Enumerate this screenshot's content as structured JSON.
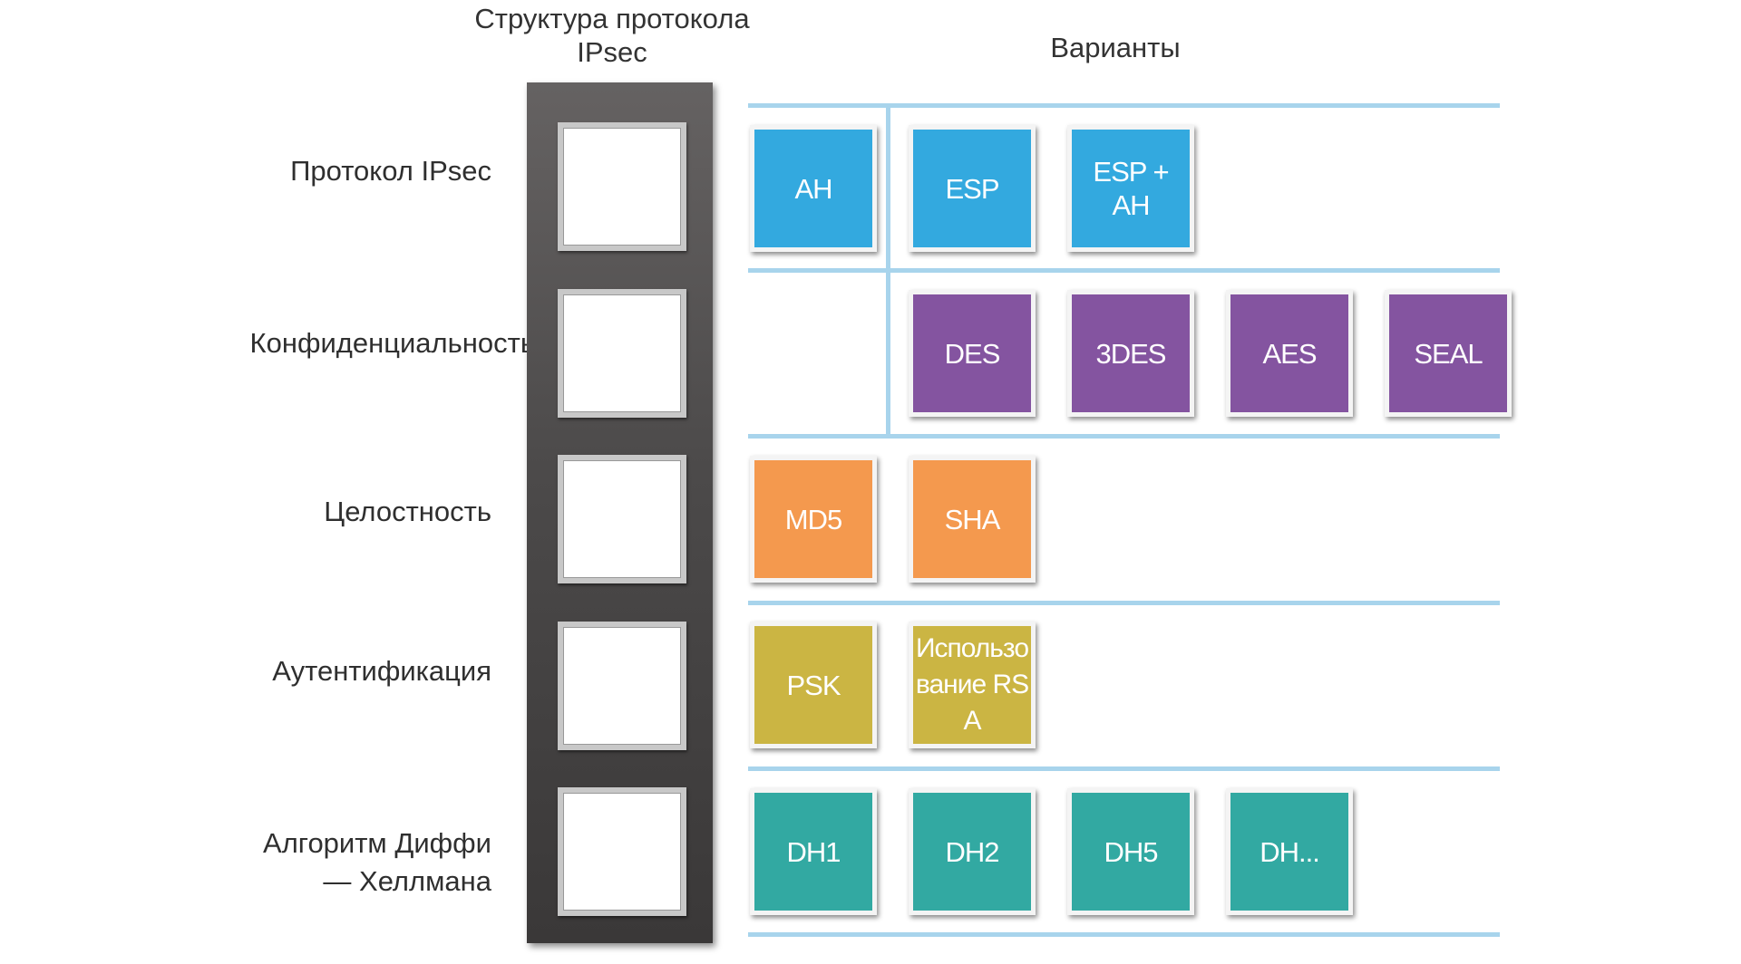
{
  "header": {
    "structure_title_line1": "Структура протокола",
    "structure_title_line2": "IPsec",
    "variants_title": "Варианты"
  },
  "colors": {
    "protocol": "#33a9df",
    "confidentiality": "#8454a0",
    "integrity": "#f4994e",
    "authentication": "#cbb543",
    "dh": "#32a9a2",
    "line": "#a8d4ec"
  },
  "rows": [
    {
      "label_line1": "Протокол IPsec",
      "label_line2": "",
      "options": [
        "AH",
        "ESP",
        "ESP +\nAH"
      ]
    },
    {
      "label_line1": "Конфиденциальность",
      "label_line2": "",
      "options": [
        "DES",
        "3DES",
        "AES",
        "SEAL"
      ]
    },
    {
      "label_line1": "Целостность",
      "label_line2": "",
      "options": [
        "MD5",
        "SHA"
      ]
    },
    {
      "label_line1": "Аутентификация",
      "label_line2": "",
      "options": [
        "PSK",
        "Использование RSA"
      ]
    },
    {
      "label_line1": "Алгоритм Диффи",
      "label_line2": "— Хеллмана",
      "options": [
        "DH1",
        "DH2",
        "DH5",
        "DH..."
      ]
    }
  ]
}
